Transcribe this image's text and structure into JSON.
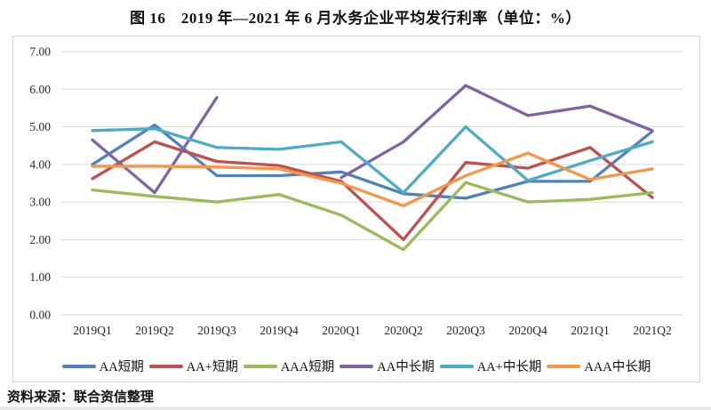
{
  "title": "图 16　2019 年—2021 年 6 月水务企业平均发行利率（单位：%）",
  "source_note": "资料来源：联合资信整理",
  "chart_data": {
    "type": "line",
    "categories": [
      "2019Q1",
      "2019Q2",
      "2019Q3",
      "2019Q4",
      "2020Q1",
      "2020Q2",
      "2020Q3",
      "2020Q4",
      "2021Q1",
      "2021Q2"
    ],
    "series": [
      {
        "name": "AA短期",
        "color": "#4F81BD",
        "values": [
          4.0,
          5.05,
          3.7,
          3.7,
          3.8,
          3.22,
          3.1,
          3.55,
          3.55,
          4.88
        ]
      },
      {
        "name": "AA+短期",
        "color": "#C0504D",
        "values": [
          3.62,
          4.6,
          4.08,
          3.97,
          3.55,
          2.0,
          4.05,
          3.9,
          4.45,
          3.12
        ]
      },
      {
        "name": "AAA短期",
        "color": "#9BBB59",
        "values": [
          3.32,
          3.15,
          3.0,
          3.2,
          2.65,
          1.73,
          3.52,
          3.0,
          3.07,
          3.25
        ]
      },
      {
        "name": "AA中长期",
        "color": "#8064A2",
        "values": [
          4.65,
          3.25,
          5.78,
          null,
          3.65,
          4.6,
          6.1,
          5.3,
          5.55,
          4.9
        ]
      },
      {
        "name": "AA+中长期",
        "color": "#4BACC6",
        "values": [
          4.9,
          4.95,
          4.45,
          4.4,
          4.6,
          3.25,
          5.0,
          3.57,
          4.1,
          4.6
        ]
      },
      {
        "name": "AAA中长期",
        "color": "#F79646",
        "values": [
          3.95,
          3.95,
          3.93,
          3.88,
          3.5,
          2.9,
          3.7,
          4.3,
          3.6,
          3.88
        ]
      }
    ],
    "ylim": [
      0,
      7
    ],
    "y_ticks": [
      "7.00",
      "6.00",
      "5.00",
      "4.00",
      "3.00",
      "2.00",
      "1.00",
      "0.00"
    ],
    "grid": true,
    "legend_position": "bottom",
    "gridline_color": "#d9d9d9"
  }
}
